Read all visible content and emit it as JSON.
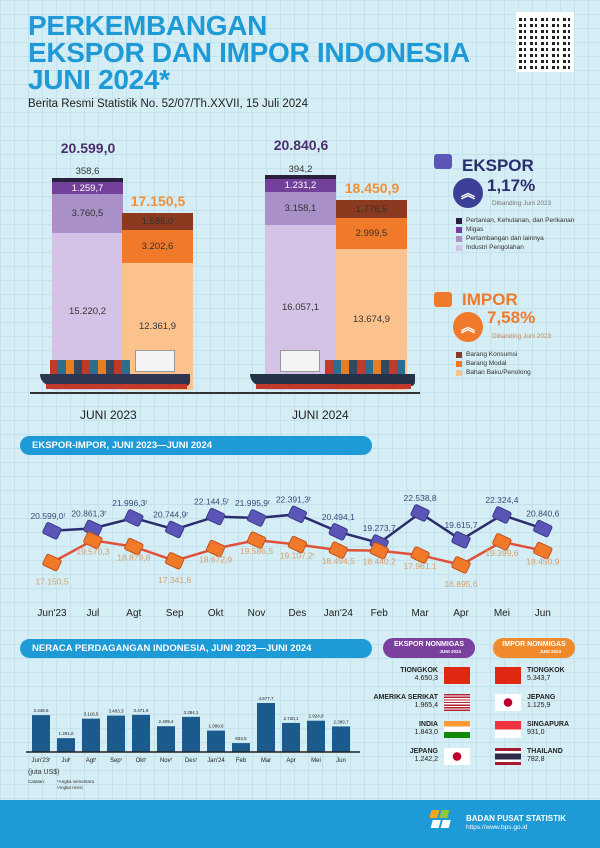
{
  "header": {
    "title_lines": [
      "PERKEMBANGAN",
      "EKSPOR DAN IMPOR INDONESIA",
      "JUNI 2024*"
    ],
    "subtitle": "Berita Resmi Statistik No. 52/07/Th.XXVII, 15 Juli 2024",
    "qr": "qr-code"
  },
  "colors": {
    "brand": "#1e9ad6",
    "ekspor": "#5b55b8",
    "impor": "#f07a2a",
    "ekspor_line": "#2b2d6e",
    "impor_line": "#e0513a",
    "neraca_bar": "#1b5a8c"
  },
  "chart_data": [
    {
      "type": "bar",
      "stacked": true,
      "categories": [
        "JUNI 2023",
        "JUNI 2024"
      ],
      "ekspor": {
        "totals": [
          "20.599,0",
          "20.840,6"
        ],
        "series": [
          {
            "name": "Industri Pengolahan",
            "color": "#d4c3e6",
            "values": [
              15220.2,
              16057.1
            ],
            "labels": [
              "15.220,2",
              "16.057,1"
            ]
          },
          {
            "name": "Pertambangan dan lainnya",
            "color": "#a990c8",
            "values": [
              3760.5,
              3158.1
            ],
            "labels": [
              "3.760,5",
              "3.158,1"
            ]
          },
          {
            "name": "Migas",
            "color": "#73409c",
            "values": [
              1259.7,
              1231.2
            ],
            "labels": [
              "1.259,7",
              "1.231,2"
            ]
          },
          {
            "name": "Pertanian, Kehutanan, dan Perikanan",
            "color": "#2a1f3d",
            "values": [
              358.6,
              394.2
            ],
            "labels": [
              "358,6",
              "394,2"
            ]
          }
        ]
      },
      "impor": {
        "totals": [
          "17.150,5",
          "18.450,9"
        ],
        "series": [
          {
            "name": "Bahan Baku/Penolong",
            "color": "#fcc28e",
            "values": [
              12361.9,
              13674.9
            ],
            "labels": [
              "12.361,9",
              "13.674,9"
            ]
          },
          {
            "name": "Barang Modal",
            "color": "#f07a2a",
            "values": [
              3202.6,
              2999.5
            ],
            "labels": [
              "3.202,6",
              "2.999,5"
            ]
          },
          {
            "name": "Barang Konsumsi",
            "color": "#8b3a1f",
            "values": [
              1586.0,
              1776.5
            ],
            "labels": [
              "1.586,0",
              "1.776,5"
            ]
          }
        ]
      }
    },
    {
      "type": "line",
      "title": "EKSPOR-IMPOR, JUNI 2023—JUNI 2024",
      "categories": [
        "Jun'23",
        "Jul",
        "Agt",
        "Sep",
        "Okt",
        "Nov",
        "Des",
        "Jan'24",
        "Feb",
        "Mar",
        "Apr",
        "Mei",
        "Jun"
      ],
      "series": [
        {
          "name": "Ekspor",
          "values": [
            20599.0,
            20861.3,
            21996.3,
            20744.9,
            22144.5,
            21995.9,
            22391.3,
            20494.1,
            19273.7,
            22538.8,
            19615.7,
            22324.4,
            20840.6
          ],
          "labels": [
            "20.599,0ʳ",
            "20.861,3ʳ",
            "21.996,3ʳ",
            "20.744,9ʳ",
            "22.144,5ʳ",
            "21.995,9ʳ",
            "22.391,3ʳ",
            "20.494,1",
            "19.273,7",
            "22.538,8",
            "19.615,7",
            "22.324,4",
            "20.840,6"
          ]
        },
        {
          "name": "Impor",
          "values": [
            17150.5,
            19570.3,
            18879.8,
            17341.6,
            18672.9,
            19586.5,
            19107.2,
            18494.5,
            18440.2,
            17961.1,
            16895.6,
            19399.6,
            18450.9
          ],
          "labels": [
            "17.150,5",
            "19.570,3",
            "18.879,8",
            "17.341,6",
            "18.672,9",
            "19.586,5",
            "19.107,2ʳ",
            "18.494,5",
            "18.440,2",
            "17.961,1",
            "16.895,6",
            "19.399,6",
            "18.450,9"
          ]
        }
      ]
    },
    {
      "type": "bar",
      "title": "NERACA PERDAGANGAN INDONESIA, JUNI 2023—JUNI 2024",
      "categories": [
        "Jun'23ʳ",
        "Julʳ",
        "Agtʳ",
        "Sepʳ",
        "Oktʳ",
        "Novʳ",
        "Desʳ",
        "Jan'24",
        "Feb",
        "Mar",
        "Apr",
        "Mei",
        "Jun"
      ],
      "values": [
        3448.5,
        1291.0,
        3116.5,
        3403.3,
        3471.6,
        2409.4,
        3284.1,
        1999.6,
        833.5,
        4577.7,
        2720.1,
        2924.8,
        2389.7
      ],
      "labels": [
        "3.448,5",
        "1.291,0",
        "3.116,5",
        "3.403,3",
        "3.471,6",
        "2.409,4",
        "3.284,1",
        "1.999,6",
        "833,5",
        "4.577,7",
        "2.720,1",
        "2.924,8",
        "2.389,7"
      ],
      "unit": "(juta US$)"
    }
  ],
  "notes": {
    "label": "Catatan:",
    "items": [
      "*Angka sementara",
      "ʳAngka revisi"
    ]
  },
  "ekspor_summary": {
    "label": "EKSPOR",
    "change": "1,17%",
    "compare": "Dibanding Juni 2023",
    "direction": "up"
  },
  "impor_summary": {
    "label": "IMPOR",
    "change": "7,58%",
    "compare": "Dibanding Juni 2023",
    "direction": "up"
  },
  "nonmigas": {
    "ekspor": {
      "title": "EKSPOR NONMIGAS",
      "period": "JUNI 2024",
      "rows": [
        {
          "country": "TIONGKOK",
          "value": "4.650,3",
          "flag": "cn"
        },
        {
          "country": "AMERIKA SERIKAT",
          "value": "1.965,4",
          "flag": "us"
        },
        {
          "country": "INDIA",
          "value": "1.843,0",
          "flag": "in"
        },
        {
          "country": "JEPANG",
          "value": "1.242,2",
          "flag": "jp"
        }
      ]
    },
    "impor": {
      "title": "IMPOR NONMIGAS",
      "period": "JUNI 2024",
      "rows": [
        {
          "country": "TIONGKOK",
          "value": "5.343,7",
          "flag": "cn"
        },
        {
          "country": "JEPANG",
          "value": "1.125,9",
          "flag": "jp"
        },
        {
          "country": "SINGAPURA",
          "value": "931,0",
          "flag": "sg"
        },
        {
          "country": "THAILAND",
          "value": "782,8",
          "flag": "th"
        }
      ]
    }
  },
  "footer": {
    "org": "BADAN PUSAT STATISTIK",
    "url": "https://www.bps.go.id"
  }
}
